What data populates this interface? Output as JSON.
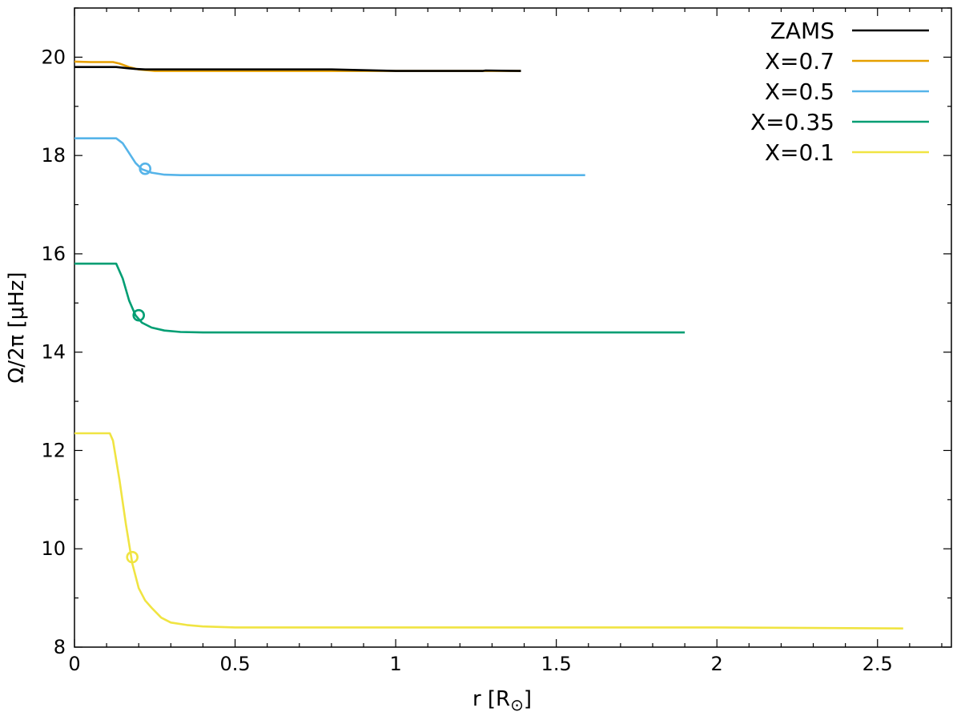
{
  "chart_data": {
    "type": "line",
    "title": "",
    "xlabel": "r [R",
    "xlabel_sub": "⊙",
    "xlabel_close": "]",
    "ylabel": "Ω/2π [μHz]",
    "xlim": [
      0,
      2.73
    ],
    "ylim": [
      8,
      21
    ],
    "x_ticks": [
      0,
      0.5,
      1,
      1.5,
      2,
      2.5
    ],
    "x_tick_labels": [
      "0",
      "0.5",
      "1",
      "1.5",
      "2",
      "2.5"
    ],
    "y_ticks": [
      8,
      10,
      12,
      14,
      16,
      18,
      20
    ],
    "y_tick_labels": [
      "8",
      "10",
      "12",
      "14",
      "16",
      "18",
      "20"
    ],
    "grid": false,
    "legend_position": "top-right",
    "series": [
      {
        "name": "ZAMS",
        "color": "#000000",
        "x": [
          0,
          0.1,
          0.13,
          0.16,
          0.19,
          0.22,
          0.3,
          0.5,
          0.8,
          1.0,
          1.27,
          1.28,
          1.39
        ],
        "y": [
          19.8,
          19.8,
          19.8,
          19.78,
          19.76,
          19.75,
          19.75,
          19.75,
          19.75,
          19.72,
          19.72,
          19.73,
          19.72
        ]
      },
      {
        "name": "X=0.7",
        "color": "#E69F00",
        "x": [
          0,
          0.05,
          0.12,
          0.14,
          0.17,
          0.2,
          0.25,
          0.5,
          0.8,
          1.0,
          1.39
        ],
        "y": [
          19.91,
          19.9,
          19.9,
          19.87,
          19.8,
          19.75,
          19.72,
          19.72,
          19.72,
          19.72,
          19.72
        ]
      },
      {
        "name": "X=0.5",
        "color": "#56B4E9",
        "x": [
          0,
          0.13,
          0.15,
          0.17,
          0.19,
          0.21,
          0.24,
          0.28,
          0.33,
          0.4,
          0.6,
          1.0,
          1.59
        ],
        "y": [
          18.35,
          18.35,
          18.25,
          18.05,
          17.85,
          17.72,
          17.65,
          17.61,
          17.6,
          17.6,
          17.6,
          17.6,
          17.6
        ]
      },
      {
        "name": "X=0.35",
        "color": "#009E73",
        "x": [
          0,
          0.13,
          0.15,
          0.17,
          0.19,
          0.21,
          0.24,
          0.28,
          0.33,
          0.4,
          0.6,
          1.0,
          1.5,
          1.9
        ],
        "y": [
          15.8,
          15.8,
          15.5,
          15.05,
          14.75,
          14.6,
          14.5,
          14.44,
          14.41,
          14.4,
          14.4,
          14.4,
          14.4,
          14.4
        ]
      },
      {
        "name": "X=0.1",
        "color": "#F0E442",
        "x": [
          0,
          0.11,
          0.12,
          0.14,
          0.16,
          0.18,
          0.2,
          0.22,
          0.24,
          0.27,
          0.3,
          0.35,
          0.4,
          0.5,
          1.0,
          1.5,
          2.0,
          2.58
        ],
        "y": [
          12.35,
          12.35,
          12.2,
          11.4,
          10.5,
          9.7,
          9.2,
          8.95,
          8.8,
          8.6,
          8.5,
          8.45,
          8.42,
          8.4,
          8.4,
          8.4,
          8.4,
          8.38
        ]
      }
    ],
    "markers": [
      {
        "series": "X=0.5",
        "x": 0.22,
        "y": 17.73,
        "symbol": "open-circle",
        "color": "#56B4E9"
      },
      {
        "series": "X=0.35",
        "x": 0.2,
        "y": 14.75,
        "symbol": "open-circle",
        "color": "#009E73"
      },
      {
        "series": "X=0.1",
        "x": 0.18,
        "y": 9.83,
        "symbol": "open-circle",
        "color": "#F0E442"
      }
    ]
  }
}
